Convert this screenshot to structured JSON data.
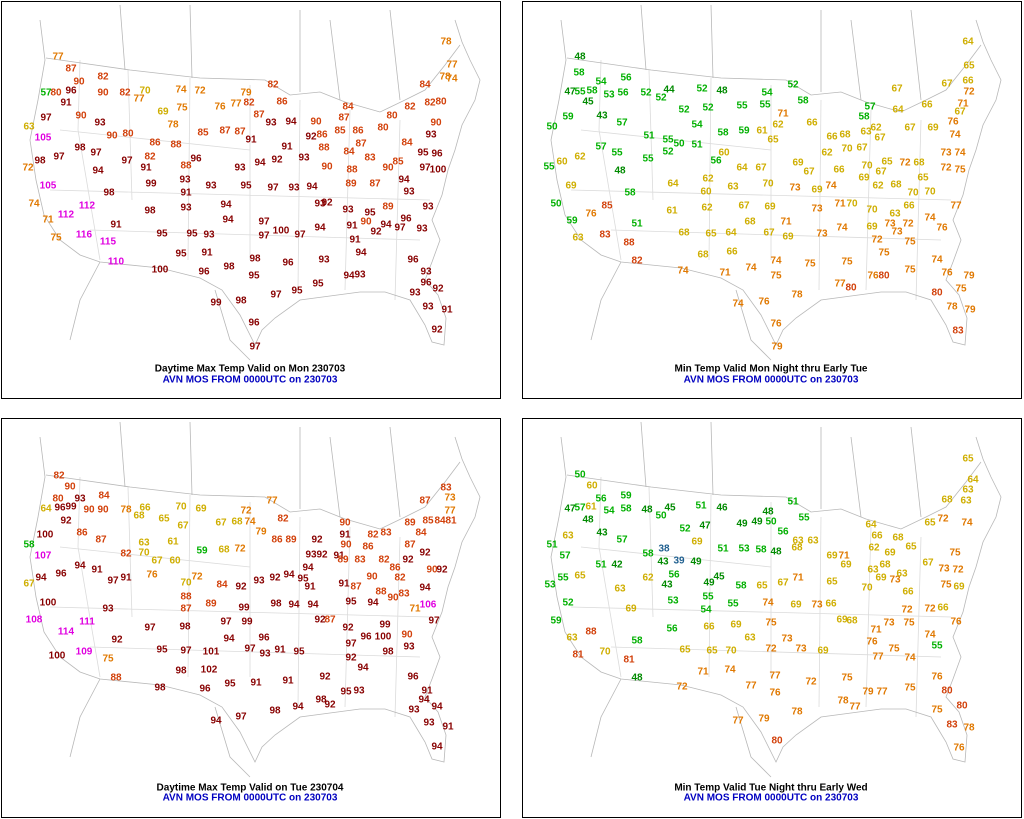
{
  "panels": [
    {
      "title": "Daytime Max Temp Valid on Mon 230703",
      "subtitle": "AVN MOS FROM 0000UTC on 230703",
      "values": [
        77,
        87,
        90,
        82,
        90,
        57,
        80,
        96,
        91,
        97,
        90,
        93,
        82,
        77,
        70,
        74,
        72,
        75,
        69,
        78,
        76,
        77,
        82,
        79,
        82,
        86,
        87,
        80,
        90,
        86,
        88,
        85,
        87,
        87,
        91,
        93,
        94,
        90,
        84,
        87,
        85,
        86,
        92,
        93,
        88,
        91,
        82,
        84,
        82,
        80,
        78,
        74,
        77,
        78,
        80,
        80,
        84,
        90,
        93,
        86,
        84,
        83,
        87,
        85,
        95,
        96,
        97,
        100,
        63,
        105,
        98,
        97,
        98,
        97,
        94,
        72,
        105,
        82,
        91,
        97,
        96,
        88,
        93,
        91,
        99,
        93,
        93,
        94,
        92,
        98,
        74,
        112,
        112,
        116,
        115,
        110,
        71,
        75,
        91,
        98,
        93,
        94,
        95,
        97,
        93,
        94,
        93,
        90,
        89,
        87,
        88,
        93,
        93,
        94,
        90,
        92,
        93,
        89,
        95,
        96,
        90,
        94,
        97,
        93,
        91,
        92,
        91,
        94,
        95,
        95,
        93,
        94,
        97,
        97,
        100,
        97,
        94,
        95,
        91,
        100,
        96,
        98,
        98,
        95,
        96,
        93,
        94,
        93,
        96,
        93,
        96,
        92,
        93,
        91,
        93,
        92,
        99,
        98,
        97,
        95,
        95,
        96,
        97
      ]
    },
    {
      "title": "Min Temp Valid Mon Night thru Early Tue",
      "subtitle": "AVN MOS FROM 0000UTC on 230703",
      "values": [
        48,
        58,
        54,
        56,
        58,
        47,
        55,
        53,
        56,
        52,
        44,
        52,
        52,
        48,
        54,
        52,
        45,
        55,
        55,
        58,
        52,
        52,
        43,
        57,
        59,
        50,
        54,
        57,
        58,
        71,
        66,
        62,
        61,
        59,
        58,
        51,
        55,
        50,
        51,
        57,
        55,
        56,
        60,
        65,
        66,
        68,
        67,
        70,
        63,
        62,
        67,
        64,
        67,
        66,
        67,
        69,
        74,
        76,
        67,
        71,
        66,
        72,
        65,
        64,
        67,
        62,
        69,
        67,
        66,
        70,
        65,
        69,
        72,
        67,
        62,
        68,
        70,
        70,
        73,
        74,
        72,
        75,
        68,
        65,
        60,
        55,
        55,
        52,
        48,
        62,
        69,
        58,
        50,
        85,
        76,
        59,
        51,
        63,
        83,
        88,
        82,
        64,
        62,
        60,
        63,
        64,
        67,
        70,
        73,
        69,
        74,
        71,
        70,
        61,
        62,
        67,
        69,
        73,
        70,
        66,
        63,
        77,
        73,
        72,
        74,
        76,
        69,
        68,
        65,
        64,
        68,
        71,
        67,
        69,
        73,
        74,
        72,
        73,
        75,
        68,
        66,
        75,
        74,
        74,
        71,
        74,
        74,
        75,
        75,
        75,
        75,
        76,
        79,
        80,
        75,
        78,
        77,
        80,
        76,
        80,
        74,
        76,
        78,
        79,
        83,
        76,
        79
      ]
    },
    {
      "title": "Daytime Max Temp Valid on Tue 230704",
      "subtitle": "AVN MOS FROM 0000UTC on 230703",
      "values": [
        82,
        90,
        80,
        93,
        84,
        90,
        64,
        96,
        99,
        90,
        92,
        100,
        86,
        87,
        78,
        66,
        68,
        70,
        69,
        65,
        67,
        72,
        77,
        67,
        68,
        74,
        79,
        82,
        86,
        89,
        90,
        91,
        92,
        82,
        89,
        87,
        85,
        84,
        81,
        83,
        73,
        77,
        83,
        84,
        58,
        107,
        63,
        70,
        61,
        60,
        59,
        68,
        72,
        82,
        76,
        67,
        96,
        94,
        91,
        94,
        67,
        97,
        91,
        70,
        72,
        84,
        92,
        93,
        92,
        94,
        94,
        95,
        93,
        92,
        91,
        90,
        86,
        83,
        82,
        86,
        87,
        92,
        90,
        94,
        92,
        100,
        93,
        88,
        87,
        89,
        91,
        91,
        89,
        90,
        87,
        88,
        90,
        83,
        82,
        92,
        71,
        106,
        108,
        114,
        111,
        109,
        75,
        88,
        100,
        92,
        97,
        98,
        97,
        99,
        99,
        98,
        94,
        94,
        92,
        87,
        95,
        94,
        92,
        96,
        97,
        90,
        93,
        99,
        97,
        94,
        96,
        97,
        93,
        91,
        95,
        92,
        94,
        98,
        100,
        95,
        97,
        101,
        102,
        98,
        98,
        96,
        95,
        91,
        91,
        92,
        95,
        93,
        96,
        91,
        94,
        94,
        93,
        91,
        93,
        94,
        94,
        98,
        92,
        98,
        94,
        97
      ]
    },
    {
      "title": "Min Temp Valid Tue Night thru Early Wed",
      "subtitle": "AVN MOS FROM 0000UTC on 230703",
      "values": [
        50,
        60,
        56,
        59,
        61,
        54,
        58,
        47,
        57,
        48,
        45,
        50,
        51,
        46,
        48,
        51,
        55,
        48,
        49,
        49,
        50,
        52,
        47,
        56,
        63,
        63,
        43,
        57,
        63,
        51,
        69,
        57,
        55,
        53,
        51,
        42,
        58,
        38,
        43,
        39,
        49,
        56,
        43,
        49,
        45,
        51,
        53,
        58,
        48,
        63,
        65,
        62,
        53,
        55,
        54,
        55,
        58,
        65,
        67,
        71,
        68,
        69,
        71,
        69,
        65,
        63,
        62,
        64,
        66,
        69,
        68,
        65,
        67,
        65,
        72,
        68,
        68,
        63,
        63,
        64,
        65,
        74,
        75,
        73,
        72,
        75,
        69,
        69,
        70,
        73,
        66,
        63,
        72,
        72,
        66,
        75,
        76,
        74,
        55,
        69,
        52,
        59,
        63,
        81,
        70,
        88,
        81,
        48,
        58,
        56,
        66,
        74,
        69,
        73,
        66,
        69,
        68,
        63,
        69,
        75,
        73,
        73,
        69,
        65,
        65,
        70,
        72,
        71,
        76,
        73,
        75,
        74,
        77,
        72,
        71,
        74,
        77,
        77,
        76,
        72,
        75,
        79,
        77,
        75,
        76,
        80,
        75,
        80,
        78,
        83,
        76,
        78,
        77,
        77,
        79,
        78,
        80
      ]
    }
  ],
  "color_scale": [
    {
      "min": 0,
      "color": "#1f5f8f"
    },
    {
      "min": 40,
      "color": "#008a00"
    },
    {
      "min": 50,
      "color": "#00b000"
    },
    {
      "min": 60,
      "color": "#cfae00"
    },
    {
      "min": 71,
      "color": "#e07800"
    },
    {
      "min": 80,
      "color": "#d2400a"
    },
    {
      "min": 91,
      "color": "#880000"
    },
    {
      "min": 105,
      "color": "#e000e0"
    }
  ]
}
